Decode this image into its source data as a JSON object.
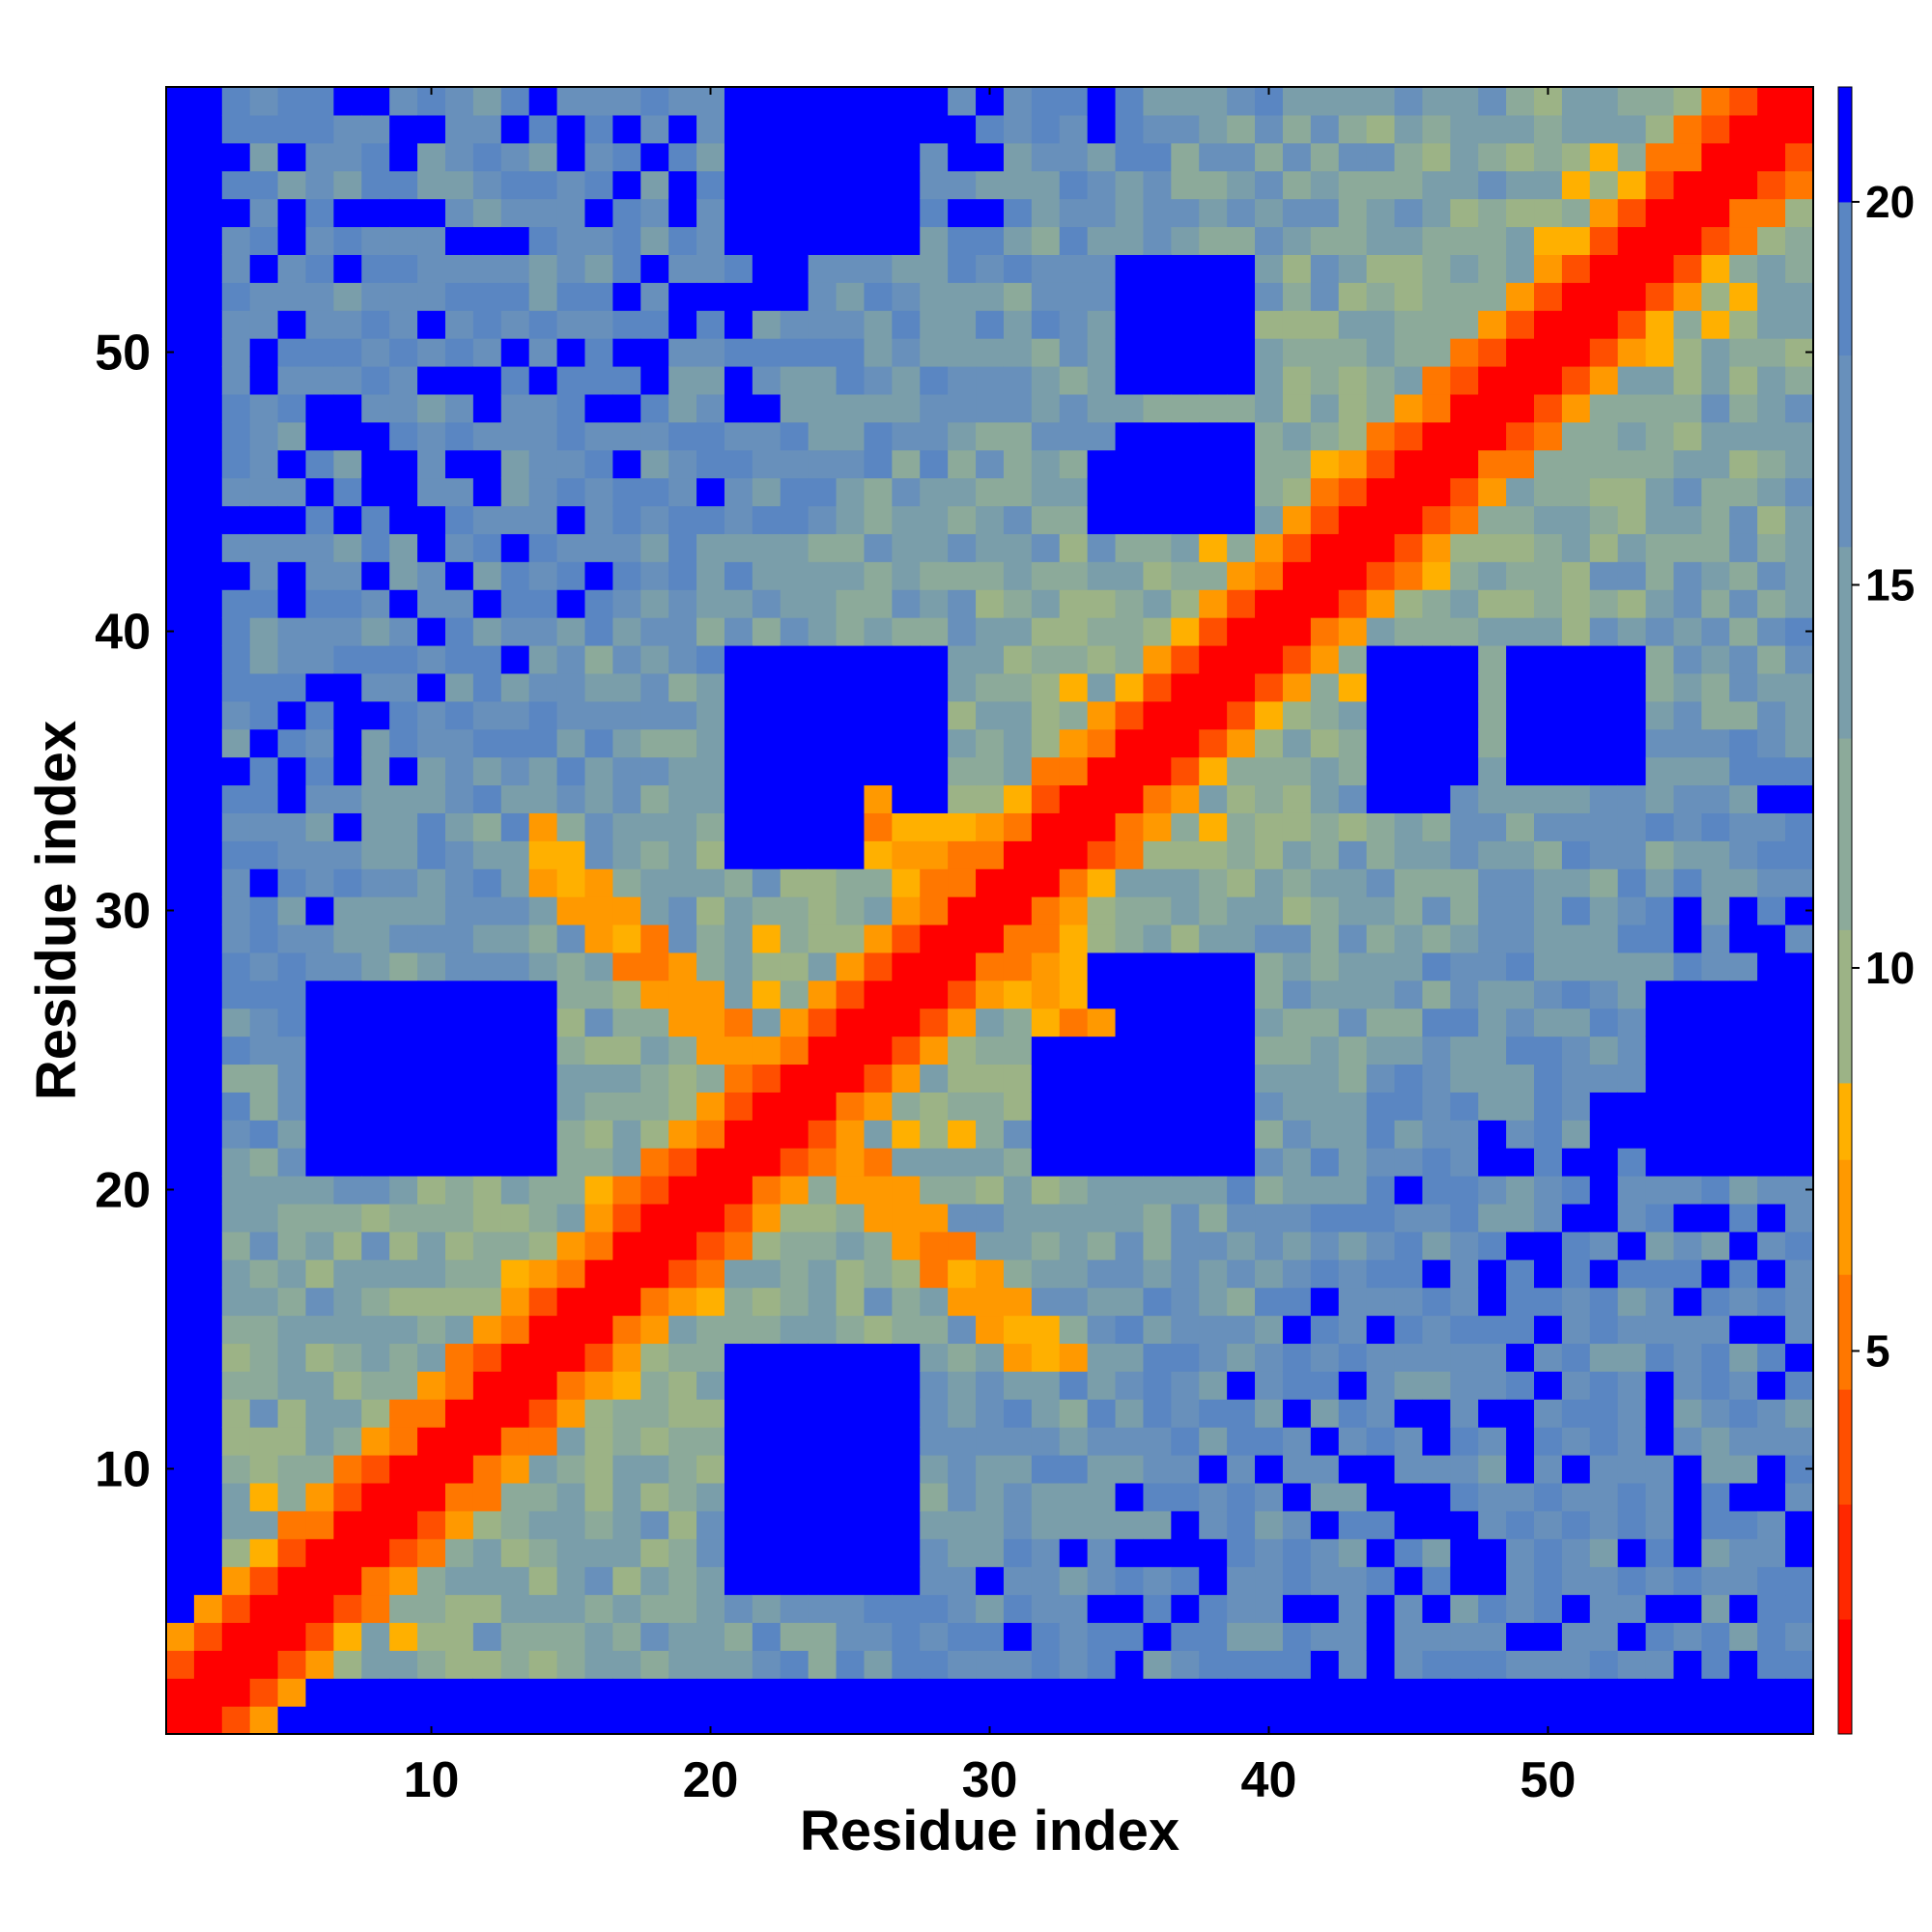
{
  "chart_data": {
    "type": "heatmap",
    "title": "",
    "xlabel": "Residue index",
    "ylabel": "Residue index",
    "n": 59,
    "xlim": [
      0.5,
      59.5
    ],
    "ylim": [
      0.5,
      59.5
    ],
    "x_ticks": [
      10,
      20,
      30,
      40,
      50
    ],
    "y_ticks": [
      10,
      20,
      30,
      40,
      50
    ],
    "colorbar": {
      "ticks": [
        5,
        10,
        15,
        20
      ],
      "range": [
        0,
        21.5
      ],
      "levels": [
        {
          "max": 1.5,
          "color": "#ff0000"
        },
        {
          "max": 3.0,
          "color": "#ff2800"
        },
        {
          "max": 4.5,
          "color": "#ff4f00"
        },
        {
          "max": 6.0,
          "color": "#ff7700"
        },
        {
          "max": 7.5,
          "color": "#ff9900"
        },
        {
          "max": 8.5,
          "color": "#ffb000"
        },
        {
          "max": 10.5,
          "color": "#9cb386"
        },
        {
          "max": 13.0,
          "color": "#8caa9a"
        },
        {
          "max": 15.5,
          "color": "#7a9eaa"
        },
        {
          "max": 18.0,
          "color": "#6890bb"
        },
        {
          "max": 20.0,
          "color": "#5a86c2"
        },
        {
          "max": 99.0,
          "color": "#0000ff"
        }
      ]
    },
    "description_of_values": "Symmetric residue-residue distance map. Diagonal (|i-j|<=1) ~0-3; secondary off-diagonal stripes of low distance; dense blue (>20) blocks.",
    "features": {
      "diagonal_width": 1,
      "near_diag": [
        {
          "center": [
            13,
            30
          ],
          "note": "anti-diagonal contact stripe, lower-left to center"
        },
        {
          "center": [
            33,
            18
          ],
          "note": "mirror stripe"
        }
      ],
      "blocks_far": [
        {
          "x": [
            21,
            27
          ],
          "y": [
            6,
            14
          ]
        },
        {
          "x": [
            21,
            27
          ],
          "y": [
            32,
            39
          ]
        },
        {
          "x": [
            21,
            27
          ],
          "y": [
            54,
            59
          ]
        },
        {
          "x": [
            7,
            14
          ],
          "y": [
            21,
            27
          ]
        },
        {
          "x": [
            34,
            39
          ],
          "y": [
            21,
            28
          ]
        },
        {
          "x": [
            34,
            39
          ],
          "y": [
            44,
            46
          ]
        },
        {
          "x": [
            36,
            39
          ],
          "y": [
            49,
            52
          ]
        },
        {
          "x": [
            45,
            47
          ],
          "y": [
            35,
            39
          ]
        },
        {
          "x": [
            49,
            53
          ],
          "y": [
            35,
            39
          ]
        },
        {
          "x": [
            54,
            59
          ],
          "y": [
            21,
            27
          ]
        },
        {
          "x": [
            1,
            2
          ],
          "y": [
            1,
            59
          ]
        }
      ]
    }
  }
}
